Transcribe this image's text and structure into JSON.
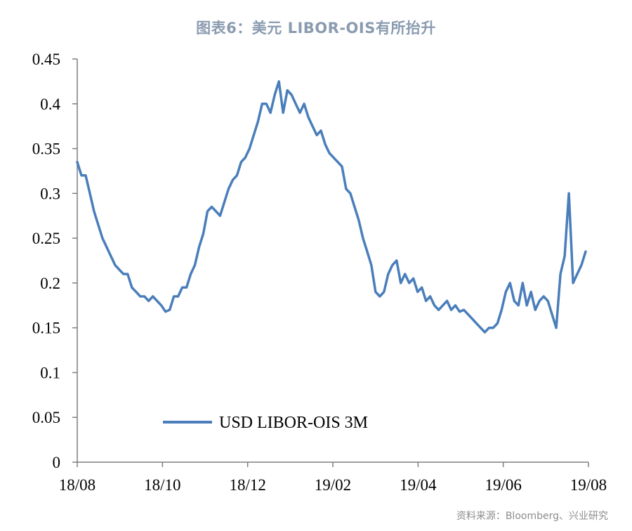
{
  "header": {
    "title": "图表6：美元 LIBOR-OIS有所抬升"
  },
  "footer": {
    "source": "资料来源：Bloomberg、兴业研究"
  },
  "colors": {
    "line": "#4a7ebb",
    "axis": "#7f7f7f"
  },
  "chart_data": {
    "type": "line",
    "title": "图表6：美元 LIBOR-OIS有所抬升",
    "xlabel": "",
    "ylabel": "",
    "ylim": [
      0,
      0.45
    ],
    "yticks": [
      0,
      0.05,
      0.1,
      0.15,
      0.2,
      0.25,
      0.3,
      0.35,
      0.4,
      0.45
    ],
    "ytick_labels": [
      "0",
      "0.05",
      "0.1",
      "0.15",
      "0.2",
      "0.25",
      "0.3",
      "0.35",
      "0.4",
      "0.45"
    ],
    "xlim": [
      "2018-08-01",
      "2019-08-01"
    ],
    "xtick_labels": [
      "18/08",
      "18/10",
      "18/12",
      "19/02",
      "19/04",
      "19/06",
      "19/08"
    ],
    "grid": false,
    "legend": {
      "placement": "bottom-left"
    },
    "series": [
      {
        "name": "USD LIBOR-OIS 3M",
        "x": [
          "2018-08-01",
          "2018-08-04",
          "2018-08-07",
          "2018-08-10",
          "2018-08-13",
          "2018-08-16",
          "2018-08-19",
          "2018-08-22",
          "2018-08-25",
          "2018-08-28",
          "2018-08-31",
          "2018-09-03",
          "2018-09-06",
          "2018-09-09",
          "2018-09-12",
          "2018-09-15",
          "2018-09-18",
          "2018-09-21",
          "2018-09-24",
          "2018-09-27",
          "2018-09-30",
          "2018-10-03",
          "2018-10-06",
          "2018-10-09",
          "2018-10-12",
          "2018-10-15",
          "2018-10-18",
          "2018-10-21",
          "2018-10-24",
          "2018-10-27",
          "2018-10-30",
          "2018-11-02",
          "2018-11-05",
          "2018-11-08",
          "2018-11-11",
          "2018-11-14",
          "2018-11-17",
          "2018-11-20",
          "2018-11-23",
          "2018-11-26",
          "2018-11-29",
          "2018-12-02",
          "2018-12-05",
          "2018-12-08",
          "2018-12-11",
          "2018-12-14",
          "2018-12-17",
          "2018-12-20",
          "2018-12-23",
          "2018-12-26",
          "2018-12-29",
          "2019-01-01",
          "2019-01-04",
          "2019-01-07",
          "2019-01-10",
          "2019-01-13",
          "2019-01-16",
          "2019-01-19",
          "2019-01-22",
          "2019-01-25",
          "2019-01-28",
          "2019-01-31",
          "2019-02-03",
          "2019-02-06",
          "2019-02-09",
          "2019-02-12",
          "2019-02-15",
          "2019-02-18",
          "2019-02-21",
          "2019-02-24",
          "2019-02-27",
          "2019-03-02",
          "2019-03-05",
          "2019-03-08",
          "2019-03-11",
          "2019-03-14",
          "2019-03-17",
          "2019-03-20",
          "2019-03-23",
          "2019-03-26",
          "2019-03-29",
          "2019-04-01",
          "2019-04-04",
          "2019-04-07",
          "2019-04-10",
          "2019-04-13",
          "2019-04-16",
          "2019-04-19",
          "2019-04-22",
          "2019-04-25",
          "2019-04-28",
          "2019-05-01",
          "2019-05-04",
          "2019-05-07",
          "2019-05-10",
          "2019-05-13",
          "2019-05-16",
          "2019-05-19",
          "2019-05-22",
          "2019-05-25",
          "2019-05-28",
          "2019-05-31",
          "2019-06-03",
          "2019-06-06",
          "2019-06-09",
          "2019-06-12",
          "2019-06-15",
          "2019-06-18",
          "2019-06-21",
          "2019-06-24",
          "2019-06-27",
          "2019-06-30",
          "2019-07-03",
          "2019-07-06",
          "2019-07-09",
          "2019-07-12",
          "2019-07-15",
          "2019-07-18",
          "2019-07-21",
          "2019-07-24",
          "2019-07-27",
          "2019-07-30"
        ],
        "values": [
          0.335,
          0.32,
          0.32,
          0.3,
          0.28,
          0.265,
          0.25,
          0.24,
          0.23,
          0.22,
          0.215,
          0.21,
          0.21,
          0.195,
          0.19,
          0.185,
          0.185,
          0.18,
          0.185,
          0.18,
          0.175,
          0.168,
          0.17,
          0.185,
          0.185,
          0.195,
          0.195,
          0.21,
          0.22,
          0.24,
          0.255,
          0.28,
          0.285,
          0.28,
          0.275,
          0.29,
          0.305,
          0.315,
          0.32,
          0.335,
          0.34,
          0.35,
          0.365,
          0.38,
          0.4,
          0.4,
          0.39,
          0.41,
          0.425,
          0.39,
          0.415,
          0.41,
          0.4,
          0.39,
          0.4,
          0.385,
          0.375,
          0.365,
          0.37,
          0.355,
          0.345,
          0.34,
          0.335,
          0.33,
          0.305,
          0.3,
          0.285,
          0.27,
          0.25,
          0.235,
          0.22,
          0.19,
          0.185,
          0.19,
          0.21,
          0.22,
          0.225,
          0.2,
          0.21,
          0.2,
          0.205,
          0.19,
          0.195,
          0.18,
          0.185,
          0.175,
          0.17,
          0.175,
          0.18,
          0.17,
          0.175,
          0.168,
          0.17,
          0.165,
          0.16,
          0.155,
          0.15,
          0.145,
          0.15,
          0.15,
          0.155,
          0.17,
          0.19,
          0.2,
          0.18,
          0.175,
          0.2,
          0.175,
          0.19,
          0.17,
          0.18,
          0.185,
          0.18,
          0.165,
          0.15,
          0.21,
          0.23,
          0.3,
          0.2,
          0.21,
          0.22,
          0.235
        ]
      }
    ]
  }
}
